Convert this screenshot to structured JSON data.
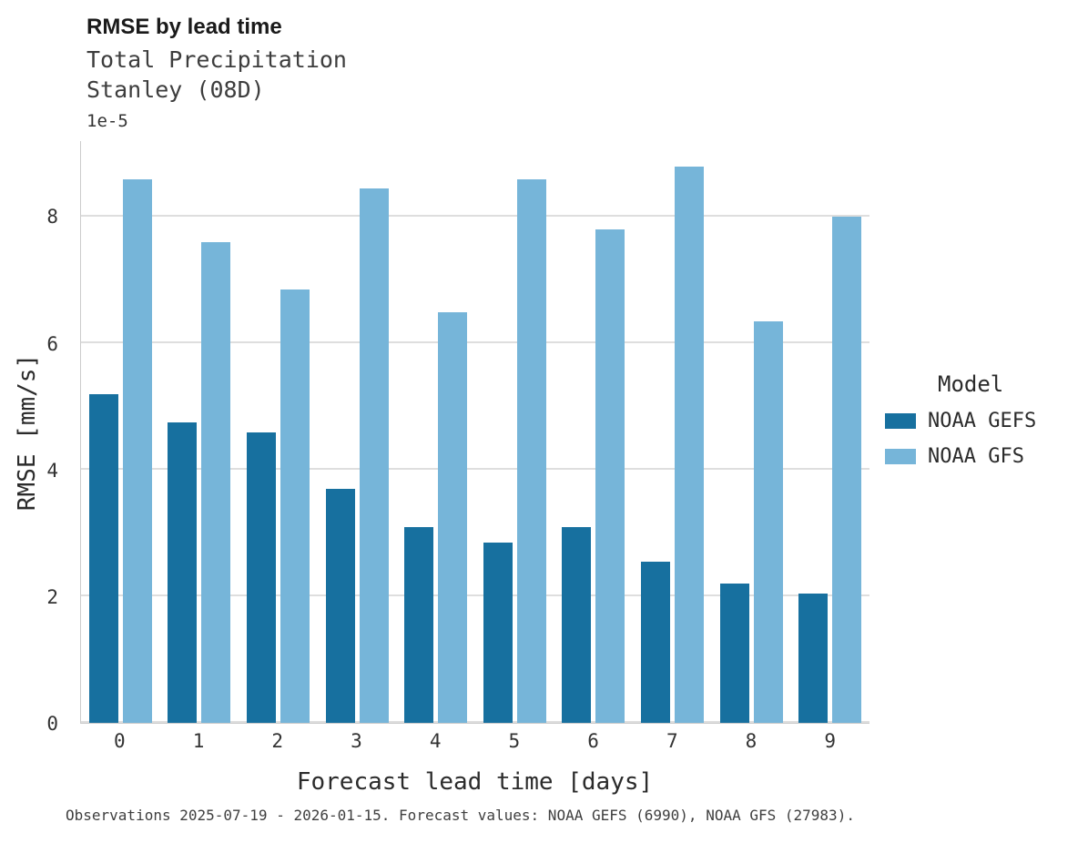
{
  "chart_data": {
    "type": "bar",
    "title": "RMSE by lead time",
    "subtitle": "Total Precipitation\nStanley (08D)",
    "y_offset_label": "1e-5",
    "xlabel": "Forecast lead time [days]",
    "ylabel": "RMSE [mm/s]",
    "value_scale": "1e-5",
    "ylim": [
      0,
      9.2
    ],
    "yticks": [
      0,
      2,
      4,
      6,
      8
    ],
    "grid": "horizontal",
    "categories": [
      "0",
      "1",
      "2",
      "3",
      "4",
      "5",
      "6",
      "7",
      "8",
      "9"
    ],
    "series": [
      {
        "name": "NOAA GEFS",
        "color": "#17709f",
        "values": [
          5.2,
          4.75,
          4.6,
          3.7,
          3.1,
          2.85,
          3.1,
          2.55,
          2.2,
          2.05
        ]
      },
      {
        "name": "NOAA GFS",
        "color": "#76b5d9",
        "values": [
          8.6,
          7.6,
          6.85,
          8.45,
          6.5,
          8.6,
          7.8,
          8.8,
          6.35,
          8.0
        ]
      }
    ],
    "legend": {
      "title": "Model",
      "position": "right"
    }
  },
  "caption": "Observations 2025-07-19 - 2026-01-15. Forecast values: NOAA GEFS (6990), NOAA GFS (27983)."
}
